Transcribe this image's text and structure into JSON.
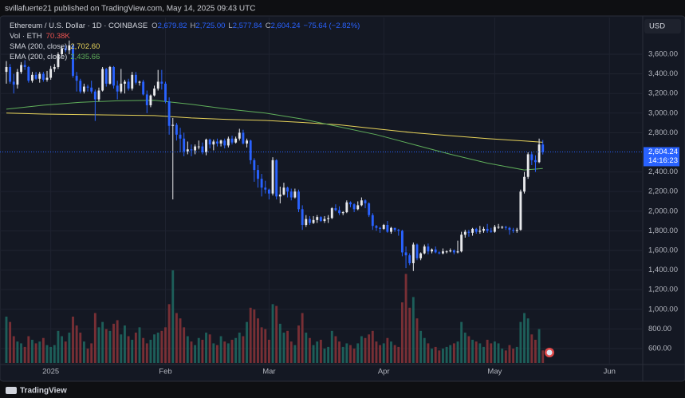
{
  "header": "svillafuerte21 published on TradingView.com, May 14, 2025 09:43 UTC",
  "footer": "TradingView",
  "currency": "USD",
  "countdown": "14:16:23",
  "symbol": "Ethereum / U.S. Dollar · 1D · COINBASE",
  "legend": {
    "open_label": "O",
    "open": "2,679.82",
    "high_label": "H",
    "high": "2,725.00",
    "low_label": "L",
    "low": "2,577.84",
    "close_label": "C",
    "close": "2,604.24",
    "change": "−75.64 (−2.82%)"
  },
  "volume_legend": {
    "label": "Vol · ETH",
    "value": "70.38K"
  },
  "chart_data": {
    "type": "candlestick",
    "up_color": "#e8e9ec",
    "down_color": "#2962ff",
    "volume_up_color": "#1f6b63",
    "volume_down_color": "#8a3438",
    "last_price_color": "#2962ff",
    "grid": true,
    "xlim": [
      -1.72,
      172
    ],
    "ylim": [
      437,
      3974
    ],
    "vol_lim": [
      0,
      560
    ],
    "xticks": [
      {
        "value": 12,
        "label": "2025"
      },
      {
        "value": 43,
        "label": "Feb"
      },
      {
        "value": 71,
        "label": "Mar"
      },
      {
        "value": 102,
        "label": "Apr"
      },
      {
        "value": 132,
        "label": "May"
      },
      {
        "value": 163,
        "label": "Jun"
      }
    ],
    "yticks": [
      {
        "value": 600,
        "label": "600.00"
      },
      {
        "value": 800,
        "label": "800.00"
      },
      {
        "value": 1000,
        "label": "1,000.00"
      },
      {
        "value": 1200,
        "label": "1,200.00"
      },
      {
        "value": 1400,
        "label": "1,400.00"
      },
      {
        "value": 1600,
        "label": "1,600.00"
      },
      {
        "value": 1800,
        "label": "1,800.00"
      },
      {
        "value": 2000,
        "label": "2,000.00"
      },
      {
        "value": 2200,
        "label": "2,200.00"
      },
      {
        "value": 2400,
        "label": "2,400.00"
      },
      {
        "value": 2800,
        "label": "2,800.00"
      },
      {
        "value": 3000,
        "label": "3,000.00"
      },
      {
        "value": 3200,
        "label": "3,200.00"
      },
      {
        "value": 3400,
        "label": "3,400.00"
      },
      {
        "value": 3600,
        "label": "3,600.00"
      }
    ],
    "ohlc": [
      [
        3420,
        3530,
        3300,
        3470
      ],
      [
        3470,
        3500,
        3300,
        3320
      ],
      [
        3320,
        3400,
        3200,
        3290
      ],
      [
        3290,
        3450,
        3250,
        3420
      ],
      [
        3420,
        3520,
        3400,
        3490
      ],
      [
        3490,
        3540,
        3440,
        3470
      ],
      [
        3470,
        3480,
        3310,
        3330
      ],
      [
        3330,
        3420,
        3310,
        3390
      ],
      [
        3390,
        3420,
        3340,
        3350
      ],
      [
        3350,
        3420,
        3310,
        3400
      ],
      [
        3400,
        3420,
        3320,
        3340
      ],
      [
        3340,
        3430,
        3320,
        3360
      ],
      [
        3360,
        3480,
        3340,
        3450
      ],
      [
        3450,
        3500,
        3420,
        3470
      ],
      [
        3470,
        3620,
        3450,
        3600
      ],
      [
        3600,
        3680,
        3580,
        3660
      ],
      [
        3660,
        3690,
        3620,
        3640
      ],
      [
        3640,
        3740,
        3600,
        3690
      ],
      [
        3690,
        3710,
        3360,
        3380
      ],
      [
        3380,
        3420,
        3220,
        3330
      ],
      [
        3330,
        3350,
        3200,
        3220
      ],
      [
        3220,
        3300,
        3200,
        3270
      ],
      [
        3270,
        3290,
        3220,
        3260
      ],
      [
        3260,
        3330,
        3200,
        3220
      ],
      [
        3220,
        3240,
        2920,
        3140
      ],
      [
        3140,
        3260,
        3120,
        3230
      ],
      [
        3230,
        3470,
        3220,
        3450
      ],
      [
        3450,
        3460,
        3270,
        3300
      ],
      [
        3300,
        3480,
        3290,
        3470
      ],
      [
        3470,
        3480,
        3250,
        3280
      ],
      [
        3280,
        3330,
        3140,
        3220
      ],
      [
        3220,
        3450,
        3200,
        3300
      ],
      [
        3300,
        3340,
        3200,
        3320
      ],
      [
        3320,
        3350,
        3230,
        3250
      ],
      [
        3250,
        3420,
        3230,
        3390
      ],
      [
        3390,
        3420,
        3290,
        3310
      ],
      [
        3310,
        3330,
        3280,
        3320
      ],
      [
        3320,
        3340,
        3180,
        3190
      ],
      [
        3190,
        3230,
        3000,
        3080
      ],
      [
        3080,
        3190,
        3060,
        3180
      ],
      [
        3180,
        3280,
        3170,
        3250
      ],
      [
        3250,
        3440,
        3230,
        3320
      ],
      [
        3320,
        3440,
        3240,
        3300
      ],
      [
        3300,
        3320,
        3100,
        3120
      ],
      [
        3120,
        3160,
        2780,
        2870
      ],
      [
        2870,
        2950,
        2120,
        2880
      ],
      [
        2880,
        2900,
        2720,
        2780
      ],
      [
        2780,
        2850,
        2600,
        2740
      ],
      [
        2740,
        2800,
        2560,
        2610
      ],
      [
        2610,
        2710,
        2580,
        2630
      ],
      [
        2630,
        2680,
        2560,
        2620
      ],
      [
        2620,
        2680,
        2580,
        2660
      ],
      [
        2660,
        2720,
        2630,
        2660
      ],
      [
        2660,
        2700,
        2580,
        2600
      ],
      [
        2600,
        2740,
        2570,
        2730
      ],
      [
        2730,
        2740,
        2640,
        2680
      ],
      [
        2680,
        2730,
        2620,
        2710
      ],
      [
        2710,
        2740,
        2660,
        2690
      ],
      [
        2690,
        2730,
        2660,
        2720
      ],
      [
        2720,
        2740,
        2640,
        2670
      ],
      [
        2670,
        2760,
        2650,
        2740
      ],
      [
        2740,
        2770,
        2680,
        2700
      ],
      [
        2700,
        2760,
        2690,
        2740
      ],
      [
        2740,
        2840,
        2720,
        2800
      ],
      [
        2800,
        2830,
        2680,
        2690
      ],
      [
        2690,
        2740,
        2650,
        2720
      ],
      [
        2720,
        2730,
        2480,
        2520
      ],
      [
        2520,
        2540,
        2300,
        2420
      ],
      [
        2420,
        2470,
        2240,
        2330
      ],
      [
        2330,
        2380,
        2150,
        2240
      ],
      [
        2240,
        2310,
        2180,
        2220
      ],
      [
        2220,
        2230,
        2120,
        2180
      ],
      [
        2180,
        2550,
        2160,
        2520
      ],
      [
        2520,
        2530,
        2120,
        2150
      ],
      [
        2150,
        2250,
        2080,
        2170
      ],
      [
        2170,
        2290,
        2160,
        2240
      ],
      [
        2240,
        2250,
        2140,
        2200
      ],
      [
        2200,
        2230,
        2110,
        2140
      ],
      [
        2140,
        2230,
        2130,
        2200
      ],
      [
        2200,
        2220,
        1990,
        2020
      ],
      [
        2020,
        2060,
        1810,
        1860
      ],
      [
        1860,
        1960,
        1840,
        1920
      ],
      [
        1920,
        1950,
        1860,
        1880
      ],
      [
        1880,
        1950,
        1870,
        1910
      ],
      [
        1910,
        1960,
        1880,
        1940
      ],
      [
        1940,
        1950,
        1890,
        1900
      ],
      [
        1900,
        1950,
        1880,
        1920
      ],
      [
        1920,
        1960,
        1880,
        1930
      ],
      [
        1930,
        2040,
        1920,
        2030
      ],
      [
        2030,
        2070,
        2000,
        2010
      ],
      [
        2010,
        2050,
        1960,
        1980
      ],
      [
        1980,
        2000,
        1960,
        1990
      ],
      [
        1990,
        2110,
        1980,
        2090
      ],
      [
        2090,
        2100,
        2040,
        2070
      ],
      [
        2070,
        2080,
        1990,
        2020
      ],
      [
        2020,
        2100,
        2010,
        2060
      ],
      [
        2060,
        2140,
        2050,
        2110
      ],
      [
        2110,
        2120,
        2030,
        2080
      ],
      [
        2080,
        2090,
        1940,
        1960
      ],
      [
        1960,
        1980,
        1810,
        1850
      ],
      [
        1850,
        1860,
        1800,
        1830
      ],
      [
        1830,
        1840,
        1780,
        1820
      ],
      [
        1820,
        1870,
        1810,
        1860
      ],
      [
        1860,
        1900,
        1780,
        1790
      ],
      [
        1790,
        1840,
        1770,
        1830
      ],
      [
        1830,
        1830,
        1790,
        1810
      ],
      [
        1810,
        1820,
        1750,
        1800
      ],
      [
        1800,
        1810,
        1540,
        1580
      ],
      [
        1580,
        1640,
        1420,
        1550
      ],
      [
        1550,
        1570,
        1450,
        1470
      ],
      [
        1470,
        1680,
        1390,
        1660
      ],
      [
        1660,
        1670,
        1500,
        1520
      ],
      [
        1520,
        1580,
        1500,
        1570
      ],
      [
        1570,
        1660,
        1560,
        1640
      ],
      [
        1640,
        1670,
        1560,
        1590
      ],
      [
        1590,
        1620,
        1570,
        1610
      ],
      [
        1610,
        1640,
        1570,
        1580
      ],
      [
        1580,
        1590,
        1560,
        1570
      ],
      [
        1570,
        1620,
        1560,
        1590
      ],
      [
        1590,
        1600,
        1570,
        1590
      ],
      [
        1590,
        1620,
        1580,
        1600
      ],
      [
        1600,
        1610,
        1560,
        1580
      ],
      [
        1580,
        1700,
        1570,
        1590
      ],
      [
        1590,
        1790,
        1580,
        1760
      ],
      [
        1760,
        1810,
        1730,
        1790
      ],
      [
        1790,
        1810,
        1740,
        1780
      ],
      [
        1780,
        1830,
        1750,
        1820
      ],
      [
        1820,
        1830,
        1770,
        1790
      ],
      [
        1790,
        1850,
        1770,
        1800
      ],
      [
        1800,
        1840,
        1780,
        1820
      ],
      [
        1820,
        1870,
        1780,
        1800
      ],
      [
        1800,
        1830,
        1780,
        1790
      ],
      [
        1790,
        1860,
        1780,
        1840
      ],
      [
        1840,
        1870,
        1820,
        1840
      ],
      [
        1840,
        1850,
        1820,
        1840
      ],
      [
        1840,
        1850,
        1810,
        1830
      ],
      [
        1830,
        1840,
        1760,
        1810
      ],
      [
        1810,
        1830,
        1780,
        1800
      ],
      [
        1800,
        1830,
        1780,
        1810
      ],
      [
        1810,
        2220,
        1800,
        2200
      ],
      [
        2200,
        2400,
        2180,
        2350
      ],
      [
        2350,
        2600,
        2330,
        2580
      ],
      [
        2580,
        2600,
        2470,
        2520
      ],
      [
        2520,
        2570,
        2400,
        2500
      ],
      [
        2500,
        2740,
        2490,
        2679.88
      ],
      [
        2679.82,
        2725,
        2577.84,
        2604.24
      ]
    ],
    "volume": [
      260,
      230,
      150,
      120,
      110,
      90,
      150,
      130,
      110,
      120,
      140,
      100,
      90,
      100,
      180,
      150,
      120,
      170,
      260,
      210,
      170,
      120,
      80,
      110,
      280,
      200,
      230,
      190,
      180,
      220,
      240,
      160,
      210,
      150,
      130,
      170,
      200,
      140,
      110,
      130,
      160,
      170,
      180,
      200,
      330,
      520,
      280,
      250,
      200,
      150,
      120,
      100,
      140,
      130,
      170,
      160,
      110,
      100,
      150,
      120,
      110,
      130,
      140,
      170,
      150,
      230,
      310,
      300,
      250,
      200,
      190,
      130,
      330,
      320,
      220,
      170,
      180,
      120,
      100,
      210,
      280,
      170,
      140,
      100,
      120,
      130,
      80,
      90,
      180,
      150,
      120,
      90,
      110,
      100,
      80,
      110,
      150,
      140,
      160,
      180,
      120,
      100,
      110,
      140,
      120,
      100,
      90,
      340,
      500,
      310,
      370,
      250,
      180,
      140,
      110,
      80,
      90,
      70,
      80,
      90,
      100,
      110,
      120,
      230,
      170,
      150,
      130,
      120,
      110,
      90,
      130,
      110,
      120,
      110,
      80,
      70,
      100,
      80,
      90,
      230,
      280,
      250,
      160,
      130,
      190,
      70.38
    ],
    "indicators": [
      {
        "name": "SMA (200, close)",
        "value_label": "2,702.60",
        "color": "#e8d45a",
        "x": [
          0,
          10,
          20,
          30,
          40,
          50,
          60,
          70,
          80,
          90,
          100,
          110,
          120,
          130,
          140,
          145
        ],
        "values": [
          3000,
          2990,
          2985,
          2980,
          2975,
          2950,
          2935,
          2925,
          2905,
          2880,
          2840,
          2800,
          2770,
          2740,
          2715,
          2702.6
        ]
      },
      {
        "name": "EMA (200, close)",
        "value_label": "2,435.66",
        "color": "#5fae5a",
        "x": [
          0,
          10,
          20,
          30,
          40,
          50,
          60,
          70,
          80,
          90,
          100,
          110,
          120,
          130,
          140,
          145
        ],
        "values": [
          3040,
          3080,
          3110,
          3125,
          3130,
          3090,
          3040,
          3000,
          2940,
          2860,
          2780,
          2680,
          2580,
          2490,
          2420,
          2435.66
        ]
      }
    ]
  }
}
